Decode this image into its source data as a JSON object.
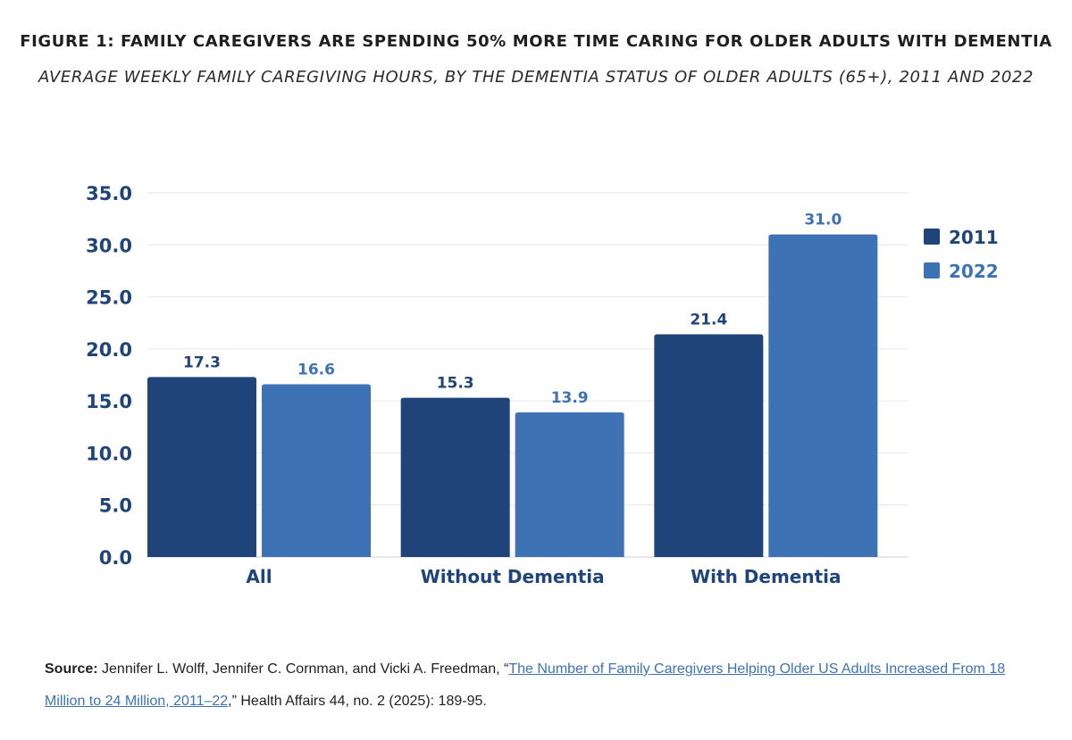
{
  "chart_data": {
    "type": "bar",
    "title": "FIGURE 1: FAMILY CAREGIVERS ARE SPENDING 50% MORE TIME CARING FOR OLDER ADULTS WITH DEMENTIA",
    "subtitle": "AVERAGE WEEKLY FAMILY CAREGIVING HOURS, BY THE DEMENTIA STATUS OF OLDER ADULTS (65+), 2011 AND 2022",
    "categories": [
      "All",
      "Without Dementia",
      "With Dementia"
    ],
    "series": [
      {
        "name": "2011",
        "color": "#1f4479",
        "values": [
          17.3,
          15.3,
          21.4
        ],
        "labels": [
          "17.3",
          "15.3",
          "21.4"
        ]
      },
      {
        "name": "2022",
        "color": "#3d73b5",
        "values": [
          16.6,
          13.9,
          31.0
        ],
        "labels": [
          "16.6",
          "13.9",
          "31.0"
        ]
      }
    ],
    "ylim": [
      0,
      35
    ],
    "yticks": [
      "0.0",
      "5.0",
      "10.0",
      "15.0",
      "20.0",
      "25.0",
      "30.0",
      "35.0"
    ],
    "xlabel": "",
    "ylabel": "",
    "grid": true,
    "legend_position": "top-right"
  },
  "source": {
    "label": "Source:",
    "authors": " Jennifer L. Wolff, Jennifer C. Cornman, and Vicki A. Freedman, “",
    "link_text": "The Number of Family Caregivers Helping Older US Adults Increased From 18 Million to 24 Million, 2011–22",
    "citation": ",” Health Affairs 44, no. 2 (2025): 189-95."
  },
  "colors": {
    "axis_text": "#1f4479",
    "grid": "#e6e6e6",
    "link": "#3b73b4"
  }
}
